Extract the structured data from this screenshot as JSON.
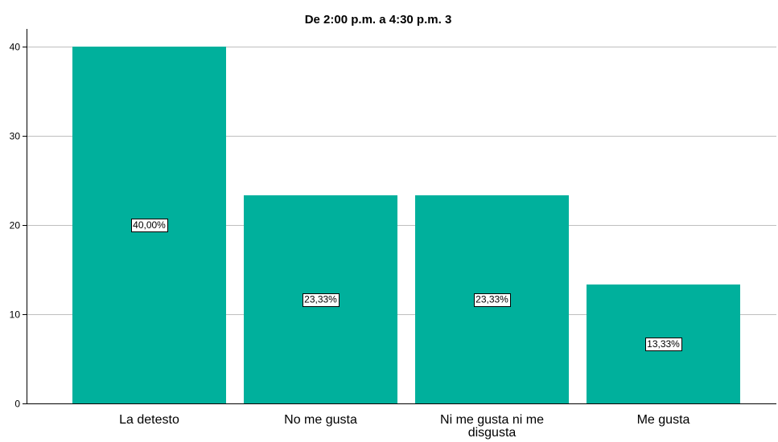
{
  "chart_data": {
    "type": "bar",
    "title": "De 2:00 p.m. a 4:30 p.m. 3",
    "categories": [
      "La detesto",
      "No me gusta",
      "Ni me gusta ni me disgusta",
      "Me gusta"
    ],
    "category_label_lines": [
      [
        "La detesto"
      ],
      [
        "No me gusta"
      ],
      [
        "Ni me gusta ni me",
        "disgusta"
      ],
      [
        "Me gusta"
      ]
    ],
    "values": [
      40,
      23.33,
      23.33,
      13.33
    ],
    "data_labels": [
      "40,00%",
      "23,33%",
      "23,33%",
      "13,33%"
    ],
    "yticks": [
      0,
      10,
      20,
      30,
      40
    ],
    "ylim": [
      0,
      40
    ],
    "xlabel": "",
    "ylabel": "",
    "grid": true,
    "legend": "none",
    "bar_color": "#00b09c",
    "grid_color": "#bfbfbf"
  }
}
